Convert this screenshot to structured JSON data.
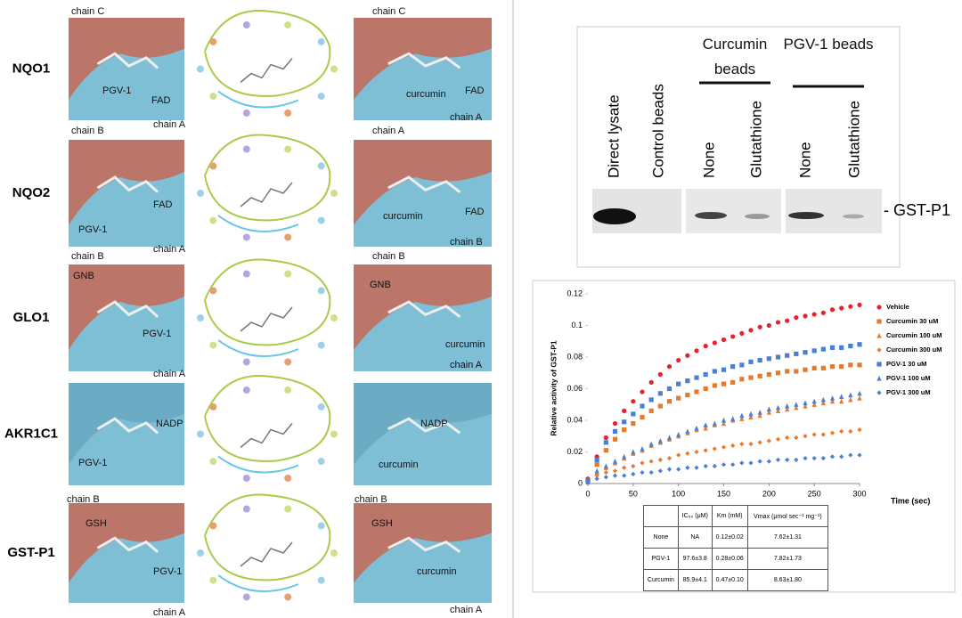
{
  "figure": {
    "docking": [
      {
        "protein": "NQO1",
        "left": [
          "chain C",
          "PGV-1",
          "FAD",
          "chain A"
        ],
        "right": [
          "chain C",
          "curcumin",
          "FAD",
          "chain A"
        ]
      },
      {
        "protein": "NQO2",
        "left": [
          "chain B",
          "FAD",
          "PGV-1",
          "chain A"
        ],
        "right": [
          "chain A",
          "curcumin",
          "FAD",
          "chain B"
        ]
      },
      {
        "protein": "GLO1",
        "left": [
          "chain B",
          "GNB",
          "PGV-1",
          "chain A"
        ],
        "right": [
          "chain B",
          "GNB",
          "curcumin",
          "chain A"
        ]
      },
      {
        "protein": "AKR1C1",
        "left": [
          "NADP",
          "PGV-1"
        ],
        "right": [
          "NADP",
          "curcumin"
        ]
      },
      {
        "protein": "GST-P1",
        "left": [
          "chain B",
          "GSH",
          "PGV-1",
          "chain A"
        ],
        "right": [
          "chain B",
          "GSH",
          "curcumin",
          "chain A"
        ]
      }
    ],
    "blot": {
      "lanes": [
        "Direct lysate",
        "Control beads",
        "None",
        "Glutathione",
        "None",
        "Glutathione"
      ],
      "groups": [
        "Curcumin beads",
        "PGV-1 beads"
      ],
      "band_label": "- GST-P1"
    },
    "table": {
      "header": [
        "IC₅₀ (μM)",
        "Km (mM)",
        "Vmax (μmol sec⁻¹ mg⁻¹)"
      ],
      "rows": [
        [
          "None",
          "NA",
          "0.12±0.02",
          "7.62±1.31"
        ],
        [
          "PGV-1",
          "97.6±3.8",
          "0.28±0.06",
          "7.82±1.73"
        ],
        [
          "Curcumin",
          "85.9±4.1",
          "0.47±0.10",
          "8.63±1.80"
        ]
      ]
    }
  },
  "chart_data": {
    "type": "scatter",
    "y_label": "Relative activity of GST-P1",
    "x_label": "Time (sec)",
    "x": [
      0,
      10,
      20,
      30,
      40,
      50,
      60,
      70,
      80,
      90,
      100,
      110,
      120,
      130,
      140,
      150,
      160,
      170,
      180,
      190,
      200,
      210,
      220,
      230,
      240,
      250,
      260,
      270,
      280,
      290,
      300
    ],
    "xlim": [
      0,
      300
    ],
    "xticks": [
      0,
      50,
      100,
      150,
      200,
      250,
      300
    ],
    "ylim": [
      0,
      0.12
    ],
    "yticks": [
      0,
      0.02,
      0.04,
      0.06,
      0.08,
      0.1,
      0.12
    ],
    "grid": false,
    "legend": "right",
    "series": [
      {
        "name": "Vehicle",
        "color": "#e8222a",
        "marker": "circle",
        "values": [
          0.003,
          0.017,
          0.029,
          0.038,
          0.046,
          0.052,
          0.058,
          0.064,
          0.069,
          0.074,
          0.078,
          0.081,
          0.084,
          0.087,
          0.089,
          0.091,
          0.093,
          0.095,
          0.097,
          0.099,
          0.1,
          0.102,
          0.103,
          0.105,
          0.106,
          0.107,
          0.108,
          0.11,
          0.111,
          0.112,
          0.113
        ]
      },
      {
        "name": "Curcumin 30 uM",
        "color": "#e8792a",
        "marker": "square",
        "values": [
          0.002,
          0.012,
          0.021,
          0.028,
          0.034,
          0.038,
          0.042,
          0.046,
          0.049,
          0.052,
          0.054,
          0.056,
          0.058,
          0.06,
          0.062,
          0.063,
          0.064,
          0.066,
          0.067,
          0.068,
          0.069,
          0.07,
          0.071,
          0.071,
          0.072,
          0.073,
          0.073,
          0.074,
          0.074,
          0.075,
          0.075
        ]
      },
      {
        "name": "Curcumin 100 uM",
        "color": "#e8792a",
        "marker": "triangle",
        "values": [
          0.001,
          0.007,
          0.01,
          0.013,
          0.016,
          0.019,
          0.021,
          0.024,
          0.026,
          0.028,
          0.03,
          0.032,
          0.034,
          0.035,
          0.037,
          0.038,
          0.04,
          0.041,
          0.042,
          0.043,
          0.045,
          0.046,
          0.047,
          0.048,
          0.049,
          0.05,
          0.051,
          0.052,
          0.052,
          0.053,
          0.054
        ]
      },
      {
        "name": "Curcumin 300 uM",
        "color": "#e8792a",
        "marker": "diamond",
        "values": [
          0.001,
          0.005,
          0.007,
          0.008,
          0.01,
          0.011,
          0.013,
          0.014,
          0.015,
          0.016,
          0.018,
          0.019,
          0.02,
          0.021,
          0.022,
          0.023,
          0.024,
          0.025,
          0.025,
          0.026,
          0.027,
          0.028,
          0.029,
          0.029,
          0.03,
          0.031,
          0.031,
          0.032,
          0.033,
          0.033,
          0.034
        ]
      },
      {
        "name": "PGV-1 30 uM",
        "color": "#4a7fd4",
        "marker": "square",
        "values": [
          0.002,
          0.015,
          0.026,
          0.033,
          0.039,
          0.044,
          0.049,
          0.053,
          0.057,
          0.06,
          0.063,
          0.065,
          0.067,
          0.069,
          0.071,
          0.072,
          0.074,
          0.075,
          0.077,
          0.078,
          0.079,
          0.08,
          0.081,
          0.082,
          0.083,
          0.084,
          0.085,
          0.086,
          0.086,
          0.087,
          0.088
        ]
      },
      {
        "name": "PGV-1 100 uM",
        "color": "#4a7fd4",
        "marker": "triangle",
        "values": [
          0.001,
          0.008,
          0.011,
          0.014,
          0.017,
          0.02,
          0.022,
          0.025,
          0.027,
          0.029,
          0.031,
          0.033,
          0.035,
          0.037,
          0.038,
          0.04,
          0.041,
          0.043,
          0.044,
          0.045,
          0.047,
          0.048,
          0.049,
          0.05,
          0.051,
          0.052,
          0.053,
          0.054,
          0.055,
          0.056,
          0.057
        ]
      },
      {
        "name": "PGV-1 300 uM",
        "color": "#4a7fd4",
        "marker": "diamond",
        "values": [
          0.001,
          0.003,
          0.004,
          0.005,
          0.005,
          0.006,
          0.007,
          0.007,
          0.008,
          0.009,
          0.009,
          0.01,
          0.01,
          0.011,
          0.011,
          0.012,
          0.012,
          0.013,
          0.013,
          0.014,
          0.014,
          0.015,
          0.015,
          0.015,
          0.016,
          0.016,
          0.016,
          0.017,
          0.017,
          0.018,
          0.018
        ]
      }
    ]
  }
}
